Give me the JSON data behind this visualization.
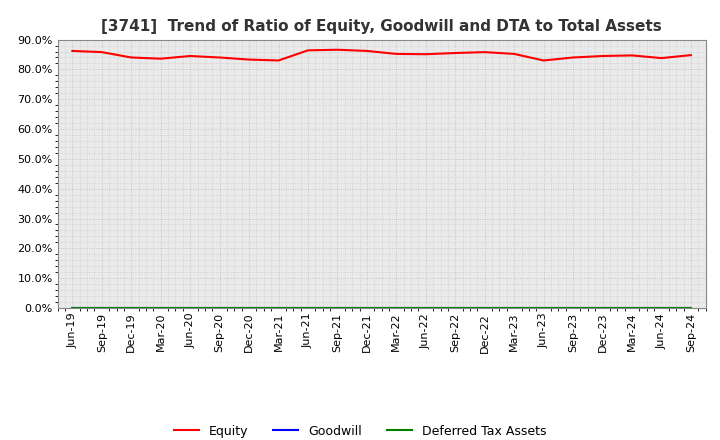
{
  "title": "[3741]  Trend of Ratio of Equity, Goodwill and DTA to Total Assets",
  "x_labels": [
    "Jun-19",
    "Sep-19",
    "Dec-19",
    "Mar-20",
    "Jun-20",
    "Sep-20",
    "Dec-20",
    "Mar-21",
    "Jun-21",
    "Sep-21",
    "Dec-21",
    "Mar-22",
    "Jun-22",
    "Sep-22",
    "Dec-22",
    "Mar-23",
    "Jun-23",
    "Sep-23",
    "Dec-23",
    "Mar-24",
    "Jun-24",
    "Sep-24"
  ],
  "equity": [
    0.862,
    0.858,
    0.84,
    0.836,
    0.845,
    0.84,
    0.833,
    0.83,
    0.864,
    0.866,
    0.862,
    0.852,
    0.851,
    0.855,
    0.858,
    0.852,
    0.83,
    0.84,
    0.845,
    0.847,
    0.838,
    0.848
  ],
  "goodwill": [
    0.0,
    0.0,
    0.0,
    0.0,
    0.0,
    0.0,
    0.0,
    0.0,
    0.0,
    0.0,
    0.0,
    0.0,
    0.0,
    0.0,
    0.0,
    0.0,
    0.0,
    0.0,
    0.0,
    0.0,
    0.0,
    0.0
  ],
  "dta": [
    0.0,
    0.0,
    0.0,
    0.0,
    0.0,
    0.0,
    0.0,
    0.0,
    0.0,
    0.0,
    0.0,
    0.0,
    0.0,
    0.0,
    0.0,
    0.0,
    0.0,
    0.0,
    0.0,
    0.0,
    0.0,
    0.0
  ],
  "equity_color": "#ff0000",
  "goodwill_color": "#0000ff",
  "dta_color": "#008000",
  "ylim": [
    0.0,
    0.9
  ],
  "yticks": [
    0.0,
    0.1,
    0.2,
    0.3,
    0.4,
    0.5,
    0.6,
    0.7,
    0.8,
    0.9
  ],
  "bg_color": "#ffffff",
  "plot_bg_color": "#eaeaea",
  "grid_color": "#bbbbbb",
  "title_fontsize": 11,
  "tick_fontsize": 8,
  "legend_fontsize": 9,
  "line_width": 1.5
}
